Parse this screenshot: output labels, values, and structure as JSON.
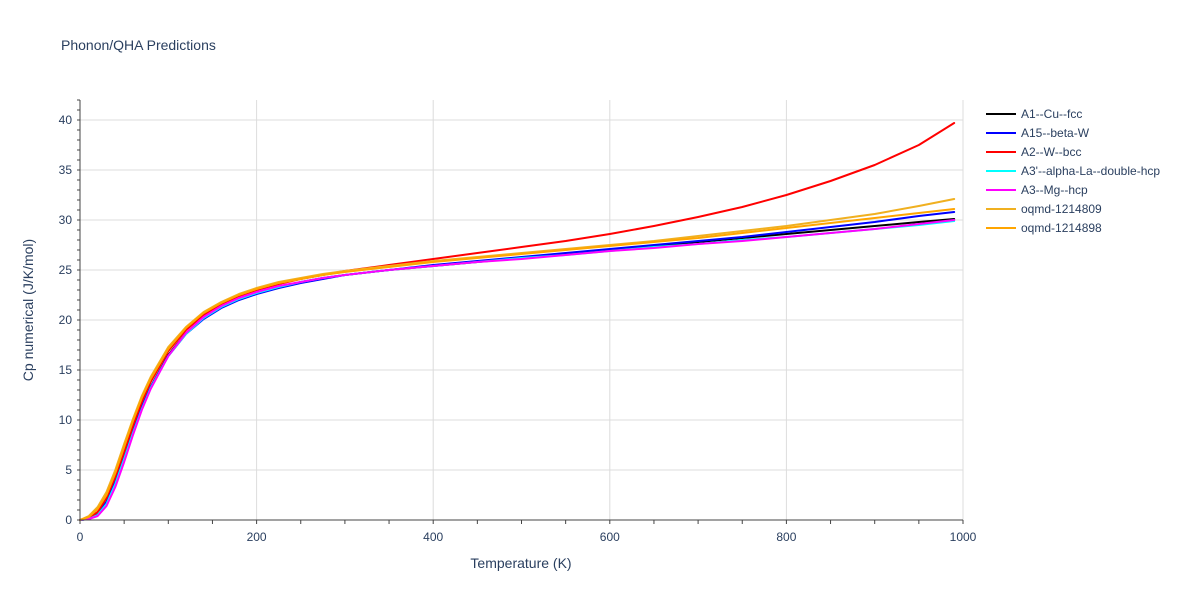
{
  "chart_data": {
    "type": "line",
    "title": "Phonon/QHA Predictions",
    "xlabel": "Temperature (K)",
    "ylabel": "Cp numerical (J/K/mol)",
    "xlim": [
      0,
      1000
    ],
    "ylim": [
      0,
      42
    ],
    "xticks": [
      0,
      200,
      400,
      600,
      800,
      1000
    ],
    "yticks": [
      0,
      5,
      10,
      15,
      20,
      25,
      30,
      35,
      40
    ],
    "grid": true,
    "legend_position": "top-right, outside plot",
    "series": [
      {
        "name": "A1--Cu--fcc",
        "color": "#000000",
        "x": [
          0,
          10,
          20,
          30,
          40,
          50,
          60,
          70,
          80,
          100,
          120,
          140,
          160,
          180,
          200,
          225,
          250,
          275,
          300,
          350,
          400,
          450,
          500,
          550,
          600,
          650,
          700,
          750,
          800,
          850,
          900,
          950,
          990
        ],
        "y": [
          0,
          0.1,
          0.6,
          1.8,
          3.8,
          6.3,
          8.9,
          11.3,
          13.3,
          16.5,
          18.7,
          20.2,
          21.3,
          22.1,
          22.7,
          23.3,
          23.8,
          24.2,
          24.5,
          25.0,
          25.4,
          25.8,
          26.2,
          26.6,
          27.0,
          27.4,
          27.8,
          28.2,
          28.6,
          29.0,
          29.4,
          29.8,
          30.1
        ]
      },
      {
        "name": "A15--beta-W",
        "color": "#0000ff",
        "x": [
          0,
          10,
          20,
          30,
          40,
          50,
          60,
          70,
          80,
          100,
          120,
          140,
          160,
          180,
          200,
          225,
          250,
          275,
          300,
          350,
          400,
          450,
          500,
          550,
          600,
          650,
          700,
          750,
          800,
          850,
          900,
          950,
          990
        ],
        "y": [
          0,
          0.1,
          0.6,
          1.8,
          3.8,
          6.3,
          8.9,
          11.3,
          13.3,
          16.4,
          18.6,
          20.1,
          21.2,
          22.0,
          22.6,
          23.2,
          23.7,
          24.1,
          24.5,
          25.0,
          25.5,
          25.9,
          26.3,
          26.7,
          27.1,
          27.5,
          27.9,
          28.3,
          28.8,
          29.3,
          29.8,
          30.4,
          30.8
        ]
      },
      {
        "name": "A2--W--bcc",
        "color": "#ff0000",
        "x": [
          0,
          10,
          20,
          30,
          40,
          50,
          60,
          70,
          80,
          100,
          120,
          140,
          160,
          180,
          200,
          225,
          250,
          275,
          300,
          350,
          400,
          450,
          500,
          550,
          600,
          650,
          700,
          750,
          800,
          850,
          900,
          950,
          990
        ],
        "y": [
          0,
          0.2,
          0.8,
          2.2,
          4.3,
          6.8,
          9.4,
          11.8,
          13.8,
          16.9,
          19.0,
          20.5,
          21.6,
          22.4,
          23.0,
          23.6,
          24.1,
          24.5,
          24.9,
          25.5,
          26.1,
          26.7,
          27.3,
          27.9,
          28.6,
          29.4,
          30.3,
          31.3,
          32.5,
          33.9,
          35.5,
          37.5,
          39.7
        ]
      },
      {
        "name": "A3'--alpha-La--double-hcp",
        "color": "#00ffff",
        "x": [
          0,
          10,
          20,
          30,
          40,
          50,
          60,
          70,
          80,
          100,
          120,
          140,
          160,
          180,
          200,
          225,
          250,
          275,
          300,
          350,
          400,
          450,
          500,
          550,
          600,
          650,
          700,
          750,
          800,
          850,
          900,
          950,
          990
        ],
        "y": [
          0,
          0.1,
          0.5,
          1.6,
          3.6,
          6.1,
          8.7,
          11.1,
          13.2,
          16.4,
          18.6,
          20.2,
          21.3,
          22.1,
          22.7,
          23.3,
          23.8,
          24.2,
          24.5,
          25.0,
          25.4,
          25.8,
          26.2,
          26.5,
          26.9,
          27.3,
          27.6,
          28.0,
          28.3,
          28.7,
          29.1,
          29.5,
          29.9
        ]
      },
      {
        "name": "A3--Mg--hcp",
        "color": "#ff00ff",
        "x": [
          0,
          10,
          20,
          30,
          40,
          50,
          60,
          70,
          80,
          100,
          120,
          140,
          160,
          180,
          200,
          225,
          250,
          275,
          300,
          350,
          400,
          450,
          500,
          550,
          600,
          650,
          700,
          750,
          800,
          850,
          900,
          950,
          990
        ],
        "y": [
          0,
          0.1,
          0.4,
          1.4,
          3.3,
          5.8,
          8.5,
          11.0,
          13.1,
          16.4,
          18.7,
          20.3,
          21.4,
          22.2,
          22.8,
          23.4,
          23.8,
          24.2,
          24.5,
          25.0,
          25.4,
          25.8,
          26.1,
          26.5,
          26.9,
          27.2,
          27.6,
          27.9,
          28.3,
          28.7,
          29.1,
          29.6,
          30.0
        ]
      },
      {
        "name": "oqmd-1214809",
        "color": "#f0b020",
        "x": [
          0,
          10,
          20,
          30,
          40,
          50,
          60,
          70,
          80,
          100,
          120,
          140,
          160,
          180,
          200,
          225,
          250,
          275,
          300,
          350,
          400,
          450,
          500,
          550,
          600,
          650,
          700,
          750,
          800,
          850,
          900,
          950,
          990
        ],
        "y": [
          0,
          0.4,
          1.3,
          2.8,
          5.0,
          7.6,
          10.1,
          12.4,
          14.3,
          17.3,
          19.3,
          20.8,
          21.8,
          22.6,
          23.2,
          23.8,
          24.2,
          24.6,
          24.9,
          25.4,
          25.9,
          26.3,
          26.7,
          27.1,
          27.5,
          27.9,
          28.4,
          28.9,
          29.4,
          30.0,
          30.6,
          31.4,
          32.1
        ]
      },
      {
        "name": "oqmd-1214898",
        "color": "#ffa500",
        "x": [
          0,
          10,
          20,
          30,
          40,
          50,
          60,
          70,
          80,
          100,
          120,
          140,
          160,
          180,
          200,
          225,
          250,
          275,
          300,
          350,
          400,
          450,
          500,
          550,
          600,
          650,
          700,
          750,
          800,
          850,
          900,
          950,
          990
        ],
        "y": [
          0,
          0.3,
          1.1,
          2.5,
          4.7,
          7.3,
          9.9,
          12.2,
          14.1,
          17.1,
          19.2,
          20.7,
          21.7,
          22.5,
          23.1,
          23.7,
          24.1,
          24.5,
          24.8,
          25.3,
          25.8,
          26.2,
          26.6,
          27.0,
          27.4,
          27.8,
          28.2,
          28.7,
          29.2,
          29.7,
          30.2,
          30.7,
          31.1
        ]
      }
    ]
  }
}
